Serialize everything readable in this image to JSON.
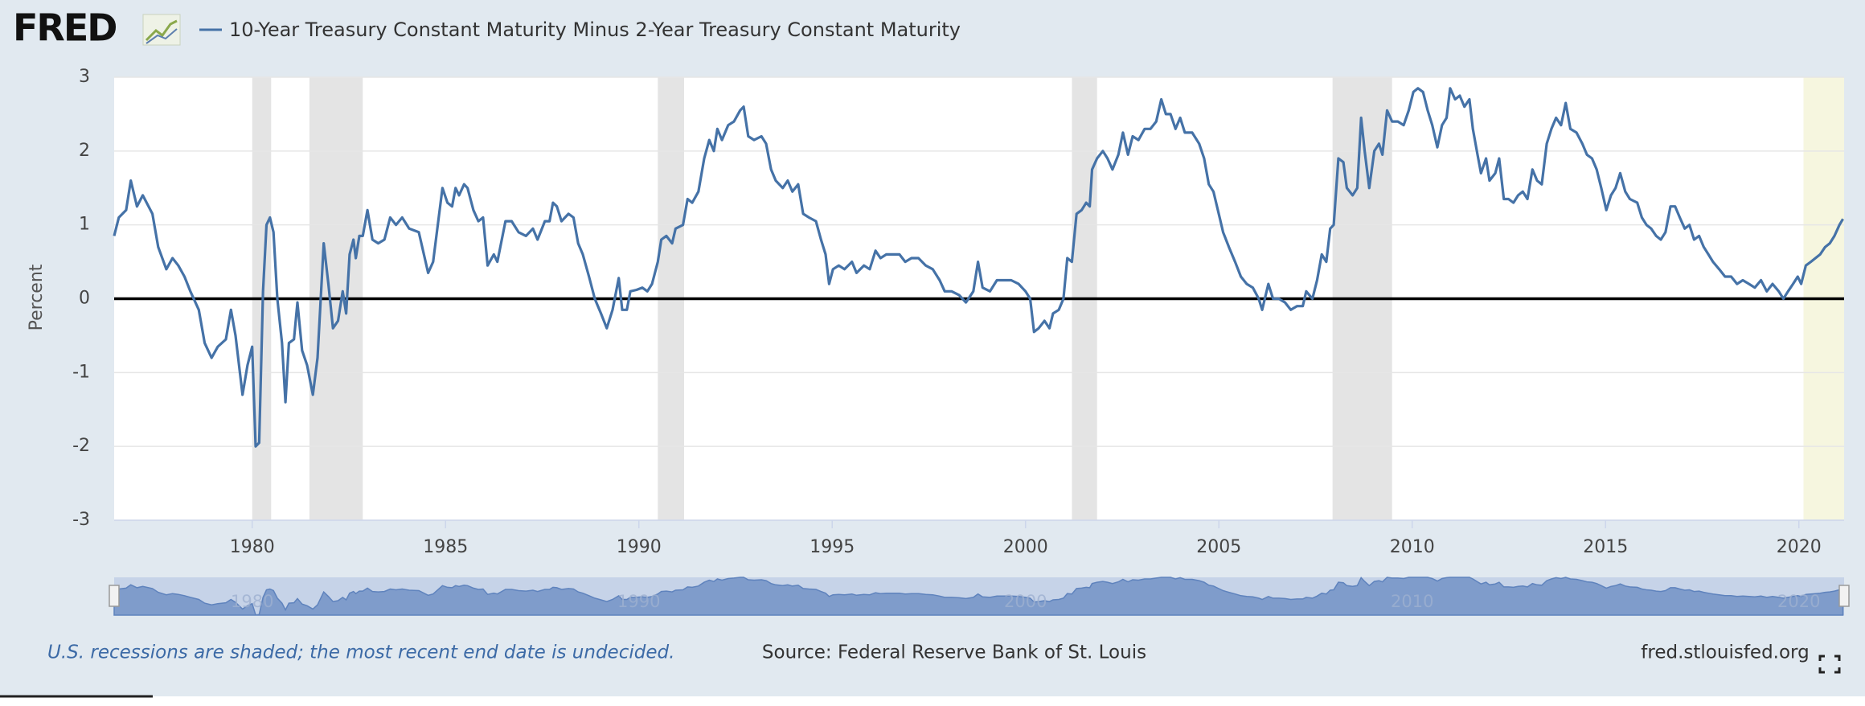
{
  "chart_data": {
    "type": "line",
    "logo": "FRED",
    "title": "10-Year Treasury Constant Maturity Minus 2-Year Treasury Constant Maturity",
    "y_label": "Percent",
    "note": "U.S. recessions are shaded; the most recent end date is undecided.",
    "source": "Source: Federal Reserve Bank of St. Louis",
    "website": "fred.stlouisfed.org",
    "xlim": [
      1976.43,
      2021.17
    ],
    "ylim": [
      -3,
      3
    ],
    "yticks": [
      -3,
      -2,
      -1,
      0,
      1,
      2,
      3
    ],
    "xticks": [
      1980,
      1985,
      1990,
      1995,
      2000,
      2005,
      2010,
      2015,
      2020
    ],
    "navigator_xticks": [
      1980,
      1990,
      2000,
      2010,
      2020
    ],
    "grid": true,
    "zero_line": true,
    "recessions": [
      [
        1980.0,
        1980.49
      ],
      [
        1981.48,
        1982.86
      ],
      [
        1990.49,
        1991.17
      ],
      [
        2001.2,
        2001.85
      ],
      [
        2007.94,
        2009.48
      ]
    ],
    "recession_color": "#e4e4e4",
    "highlight": [
      2020.12,
      2021.17
    ],
    "highlight_color": "#f6f6df",
    "x": [
      1976.43,
      1976.55,
      1976.74,
      1976.86,
      1977.02,
      1977.17,
      1977.42,
      1977.57,
      1977.78,
      1977.94,
      1978.09,
      1978.25,
      1978.4,
      1978.62,
      1978.77,
      1978.95,
      1979.11,
      1979.32,
      1979.45,
      1979.57,
      1979.75,
      1979.88,
      1980.0,
      1980.09,
      1980.18,
      1980.28,
      1980.37,
      1980.46,
      1980.55,
      1980.65,
      1980.77,
      1980.86,
      1980.95,
      1981.08,
      1981.17,
      1981.29,
      1981.42,
      1981.57,
      1981.69,
      1981.85,
      1981.97,
      1982.09,
      1982.22,
      1982.34,
      1982.43,
      1982.52,
      1982.62,
      1982.68,
      1982.77,
      1982.86,
      1982.98,
      1983.11,
      1983.26,
      1983.42,
      1983.57,
      1983.72,
      1983.88,
      1984.06,
      1984.31,
      1984.55,
      1984.68,
      1984.92,
      1985.05,
      1985.17,
      1985.26,
      1985.35,
      1985.48,
      1985.57,
      1985.72,
      1985.85,
      1985.97,
      1986.09,
      1986.25,
      1986.34,
      1986.55,
      1986.71,
      1986.89,
      1987.08,
      1987.26,
      1987.38,
      1987.57,
      1987.69,
      1987.78,
      1987.88,
      1988.0,
      1988.18,
      1988.31,
      1988.43,
      1988.55,
      1988.71,
      1988.86,
      1989.02,
      1989.17,
      1989.32,
      1989.48,
      1989.57,
      1989.69,
      1989.78,
      1989.94,
      1990.09,
      1990.22,
      1990.34,
      1990.49,
      1990.58,
      1990.71,
      1990.86,
      1990.95,
      1991.14,
      1991.26,
      1991.38,
      1991.54,
      1991.69,
      1991.82,
      1991.94,
      1992.03,
      1992.15,
      1992.31,
      1992.46,
      1992.62,
      1992.71,
      1992.83,
      1992.98,
      1993.17,
      1993.29,
      1993.42,
      1993.54,
      1993.72,
      1993.85,
      1993.97,
      1994.12,
      1994.25,
      1994.4,
      1994.58,
      1994.71,
      1994.83,
      1994.92,
      1995.02,
      1995.17,
      1995.32,
      1995.51,
      1995.63,
      1995.82,
      1995.97,
      1996.12,
      1996.25,
      1996.4,
      1996.55,
      1996.74,
      1996.89,
      1997.05,
      1997.23,
      1997.42,
      1997.6,
      1997.78,
      1997.91,
      1998.09,
      1998.28,
      1998.46,
      1998.65,
      1998.77,
      1998.89,
      1999.08,
      1999.26,
      1999.45,
      1999.63,
      1999.82,
      2000.0,
      2000.12,
      2000.22,
      2000.34,
      2000.49,
      2000.62,
      2000.71,
      2000.86,
      2000.98,
      2001.08,
      2001.2,
      2001.32,
      2001.45,
      2001.57,
      2001.66,
      2001.72,
      2001.85,
      2002.0,
      2002.12,
      2002.25,
      2002.4,
      2002.52,
      2002.65,
      2002.77,
      2002.92,
      2003.08,
      2003.23,
      2003.38,
      2003.51,
      2003.63,
      2003.75,
      2003.88,
      2004.0,
      2004.12,
      2004.31,
      2004.49,
      2004.62,
      2004.74,
      2004.86,
      2005.02,
      2005.11,
      2005.26,
      2005.42,
      2005.57,
      2005.72,
      2005.88,
      2006.03,
      2006.12,
      2006.28,
      2006.4,
      2006.55,
      2006.71,
      2006.86,
      2007.02,
      2007.17,
      2007.26,
      2007.42,
      2007.54,
      2007.66,
      2007.78,
      2007.88,
      2007.97,
      2008.09,
      2008.22,
      2008.31,
      2008.46,
      2008.58,
      2008.68,
      2008.77,
      2008.89,
      2009.02,
      2009.14,
      2009.23,
      2009.35,
      2009.48,
      2009.63,
      2009.78,
      2009.91,
      2010.03,
      2010.15,
      2010.28,
      2010.4,
      2010.52,
      2010.65,
      2010.77,
      2010.89,
      2010.98,
      2011.11,
      2011.23,
      2011.35,
      2011.48,
      2011.57,
      2011.69,
      2011.78,
      2011.91,
      2012.0,
      2012.15,
      2012.25,
      2012.37,
      2012.49,
      2012.62,
      2012.74,
      2012.86,
      2012.98,
      2013.11,
      2013.23,
      2013.35,
      2013.48,
      2013.6,
      2013.72,
      2013.85,
      2013.97,
      2014.09,
      2014.25,
      2014.4,
      2014.52,
      2014.65,
      2014.77,
      2014.89,
      2015.02,
      2015.14,
      2015.26,
      2015.38,
      2015.51,
      2015.63,
      2015.82,
      2015.94,
      2016.06,
      2016.18,
      2016.31,
      2016.43,
      2016.55,
      2016.68,
      2016.8,
      2016.92,
      2017.05,
      2017.17,
      2017.29,
      2017.42,
      2017.54,
      2017.66,
      2017.78,
      2017.94,
      2018.09,
      2018.25,
      2018.4,
      2018.55,
      2018.71,
      2018.86,
      2019.02,
      2019.17,
      2019.32,
      2019.48,
      2019.6,
      2019.72,
      2019.85,
      2019.97,
      2020.06,
      2020.18,
      2020.31,
      2020.43,
      2020.55,
      2020.68,
      2020.8,
      2020.92,
      2021.05,
      2021.14
    ],
    "series": [
      {
        "name": "10-Year Treasury Constant Maturity Minus 2-Year Treasury Constant Maturity",
        "color": "#4572a7",
        "values": [
          0.85,
          1.1,
          1.2,
          1.6,
          1.25,
          1.4,
          1.15,
          0.7,
          0.4,
          0.55,
          0.45,
          0.3,
          0.1,
          -0.15,
          -0.6,
          -0.8,
          -0.65,
          -0.55,
          -0.15,
          -0.5,
          -1.3,
          -0.9,
          -0.65,
          -2.0,
          -1.95,
          0.1,
          1.0,
          1.1,
          0.9,
          0.0,
          -0.6,
          -1.4,
          -0.6,
          -0.55,
          -0.05,
          -0.7,
          -0.9,
          -1.3,
          -0.8,
          0.75,
          0.2,
          -0.4,
          -0.3,
          0.1,
          -0.2,
          0.6,
          0.8,
          0.55,
          0.85,
          0.85,
          1.2,
          0.8,
          0.75,
          0.8,
          1.1,
          1.0,
          1.1,
          0.95,
          0.9,
          0.35,
          0.5,
          1.5,
          1.3,
          1.25,
          1.5,
          1.4,
          1.55,
          1.5,
          1.2,
          1.05,
          1.1,
          0.45,
          0.6,
          0.5,
          1.05,
          1.05,
          0.9,
          0.85,
          0.95,
          0.8,
          1.05,
          1.05,
          1.3,
          1.25,
          1.05,
          1.15,
          1.1,
          0.75,
          0.6,
          0.3,
          0.0,
          -0.2,
          -0.4,
          -0.15,
          0.28,
          -0.15,
          -0.15,
          0.1,
          0.12,
          0.15,
          0.1,
          0.2,
          0.5,
          0.8,
          0.85,
          0.75,
          0.95,
          1.0,
          1.35,
          1.3,
          1.45,
          1.9,
          2.15,
          2.0,
          2.3,
          2.15,
          2.35,
          2.4,
          2.55,
          2.6,
          2.2,
          2.15,
          2.2,
          2.1,
          1.75,
          1.6,
          1.5,
          1.6,
          1.45,
          1.55,
          1.15,
          1.1,
          1.05,
          0.8,
          0.6,
          0.2,
          0.4,
          0.45,
          0.4,
          0.5,
          0.35,
          0.45,
          0.4,
          0.65,
          0.55,
          0.6,
          0.6,
          0.6,
          0.5,
          0.55,
          0.55,
          0.45,
          0.4,
          0.25,
          0.1,
          0.1,
          0.05,
          -0.05,
          0.1,
          0.5,
          0.15,
          0.1,
          0.25,
          0.25,
          0.25,
          0.2,
          0.1,
          0.0,
          -0.45,
          -0.4,
          -0.3,
          -0.4,
          -0.2,
          -0.15,
          0.0,
          0.55,
          0.5,
          1.15,
          1.2,
          1.3,
          1.25,
          1.75,
          1.9,
          2.0,
          1.9,
          1.75,
          1.95,
          2.25,
          1.95,
          2.2,
          2.15,
          2.3,
          2.3,
          2.4,
          2.7,
          2.5,
          2.5,
          2.3,
          2.45,
          2.25,
          2.25,
          2.1,
          1.9,
          1.55,
          1.45,
          1.1,
          0.9,
          0.7,
          0.5,
          0.3,
          0.2,
          0.15,
          0.0,
          -0.15,
          0.2,
          0.0,
          0.0,
          -0.05,
          -0.15,
          -0.1,
          -0.1,
          0.1,
          0.0,
          0.25,
          0.6,
          0.5,
          0.95,
          1.0,
          1.9,
          1.85,
          1.5,
          1.4,
          1.5,
          2.45,
          2.0,
          1.5,
          2.0,
          2.1,
          1.95,
          2.55,
          2.4,
          2.4,
          2.35,
          2.55,
          2.8,
          2.85,
          2.8,
          2.55,
          2.35,
          2.05,
          2.35,
          2.45,
          2.85,
          2.7,
          2.75,
          2.6,
          2.7,
          2.3,
          1.95,
          1.7,
          1.9,
          1.6,
          1.7,
          1.9,
          1.35,
          1.35,
          1.3,
          1.4,
          1.45,
          1.35,
          1.75,
          1.6,
          1.55,
          2.1,
          2.3,
          2.45,
          2.35,
          2.65,
          2.3,
          2.25,
          2.1,
          1.95,
          1.9,
          1.75,
          1.5,
          1.2,
          1.4,
          1.5,
          1.7,
          1.45,
          1.35,
          1.3,
          1.1,
          1.0,
          0.95,
          0.85,
          0.8,
          0.9,
          1.25,
          1.25,
          1.1,
          0.95,
          1.0,
          0.8,
          0.85,
          0.7,
          0.6,
          0.5,
          0.4,
          0.3,
          0.3,
          0.2,
          0.25,
          0.2,
          0.15,
          0.25,
          0.1,
          0.2,
          0.1,
          0.0,
          0.1,
          0.2,
          0.3,
          0.2,
          0.45,
          0.5,
          0.55,
          0.6,
          0.7,
          0.75,
          0.85,
          1.0,
          1.08
        ]
      }
    ]
  }
}
